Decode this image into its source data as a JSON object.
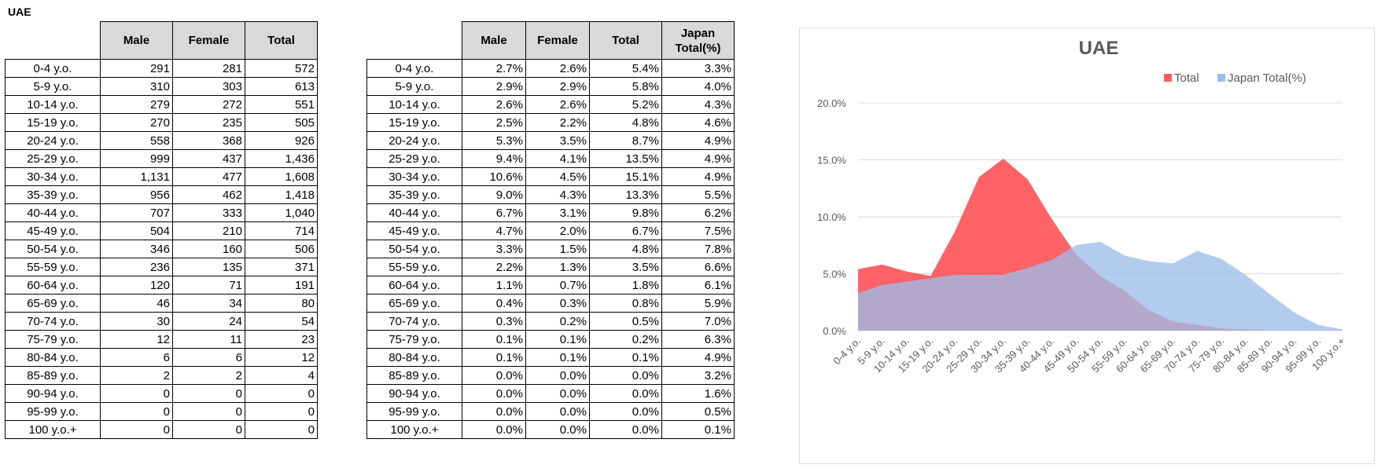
{
  "sheet_title": "UAE",
  "table1": {
    "headers": [
      "Male",
      "Female",
      "Total"
    ],
    "rows": [
      [
        "0-4 y.o.",
        "291",
        "281",
        "572"
      ],
      [
        "5-9 y.o.",
        "310",
        "303",
        "613"
      ],
      [
        "10-14 y.o.",
        "279",
        "272",
        "551"
      ],
      [
        "15-19 y.o.",
        "270",
        "235",
        "505"
      ],
      [
        "20-24 y.o.",
        "558",
        "368",
        "926"
      ],
      [
        "25-29 y.o.",
        "999",
        "437",
        "1,436"
      ],
      [
        "30-34 y.o.",
        "1,131",
        "477",
        "1,608"
      ],
      [
        "35-39 y.o.",
        "956",
        "462",
        "1,418"
      ],
      [
        "40-44 y.o.",
        "707",
        "333",
        "1,040"
      ],
      [
        "45-49 y.o.",
        "504",
        "210",
        "714"
      ],
      [
        "50-54 y.o.",
        "346",
        "160",
        "506"
      ],
      [
        "55-59 y.o.",
        "236",
        "135",
        "371"
      ],
      [
        "60-64 y.o.",
        "120",
        "71",
        "191"
      ],
      [
        "65-69 y.o.",
        "46",
        "34",
        "80"
      ],
      [
        "70-74 y.o.",
        "30",
        "24",
        "54"
      ],
      [
        "75-79 y.o.",
        "12",
        "11",
        "23"
      ],
      [
        "80-84 y.o.",
        "6",
        "6",
        "12"
      ],
      [
        "85-89 y.o.",
        "2",
        "2",
        "4"
      ],
      [
        "90-94 y.o.",
        "0",
        "0",
        "0"
      ],
      [
        "95-99 y.o.",
        "0",
        "0",
        "0"
      ],
      [
        "100 y.o.+",
        "0",
        "0",
        "0"
      ]
    ]
  },
  "table2": {
    "headers": [
      "Male",
      "Female",
      "Total",
      "Japan Total(%)"
    ],
    "rows": [
      [
        "0-4 y.o.",
        "2.7%",
        "2.6%",
        "5.4%",
        "3.3%"
      ],
      [
        "5-9 y.o.",
        "2.9%",
        "2.9%",
        "5.8%",
        "4.0%"
      ],
      [
        "10-14 y.o.",
        "2.6%",
        "2.6%",
        "5.2%",
        "4.3%"
      ],
      [
        "15-19 y.o.",
        "2.5%",
        "2.2%",
        "4.8%",
        "4.6%"
      ],
      [
        "20-24 y.o.",
        "5.3%",
        "3.5%",
        "8.7%",
        "4.9%"
      ],
      [
        "25-29 y.o.",
        "9.4%",
        "4.1%",
        "13.5%",
        "4.9%"
      ],
      [
        "30-34 y.o.",
        "10.6%",
        "4.5%",
        "15.1%",
        "4.9%"
      ],
      [
        "35-39 y.o.",
        "9.0%",
        "4.3%",
        "13.3%",
        "5.5%"
      ],
      [
        "40-44 y.o.",
        "6.7%",
        "3.1%",
        "9.8%",
        "6.2%"
      ],
      [
        "45-49 y.o.",
        "4.7%",
        "2.0%",
        "6.7%",
        "7.5%"
      ],
      [
        "50-54 y.o.",
        "3.3%",
        "1.5%",
        "4.8%",
        "7.8%"
      ],
      [
        "55-59 y.o.",
        "2.2%",
        "1.3%",
        "3.5%",
        "6.6%"
      ],
      [
        "60-64 y.o.",
        "1.1%",
        "0.7%",
        "1.8%",
        "6.1%"
      ],
      [
        "65-69 y.o.",
        "0.4%",
        "0.3%",
        "0.8%",
        "5.9%"
      ],
      [
        "70-74 y.o.",
        "0.3%",
        "0.2%",
        "0.5%",
        "7.0%"
      ],
      [
        "75-79 y.o.",
        "0.1%",
        "0.1%",
        "0.2%",
        "6.3%"
      ],
      [
        "80-84 y.o.",
        "0.1%",
        "0.1%",
        "0.1%",
        "4.9%"
      ],
      [
        "85-89 y.o.",
        "0.0%",
        "0.0%",
        "0.0%",
        "3.2%"
      ],
      [
        "90-94 y.o.",
        "0.0%",
        "0.0%",
        "0.0%",
        "1.6%"
      ],
      [
        "95-99 y.o.",
        "0.0%",
        "0.0%",
        "0.0%",
        "0.5%"
      ],
      [
        "100 y.o.+",
        "0.0%",
        "0.0%",
        "0.0%",
        "0.1%"
      ]
    ]
  },
  "chart_data": {
    "type": "area",
    "title": "UAE",
    "categories": [
      "0-4 y.o.",
      "5-9 y.o.",
      "10-14 y.o.",
      "15-19 y.o.",
      "20-24 y.o.",
      "25-29 y.o.",
      "30-34 y.o.",
      "35-39 y.o.",
      "40-44 y.o.",
      "45-49 y.o.",
      "50-54 y.o.",
      "55-59 y.o.",
      "60-64 y.o.",
      "65-69 y.o.",
      "70-74 y.o.",
      "75-79 y.o.",
      "80-84 y.o.",
      "85-89 y.o.",
      "90-94 y.o.",
      "95-99 y.o.",
      "100 y.o.+"
    ],
    "series": [
      {
        "name": "Total",
        "color": "#ff5a5f",
        "values": [
          5.4,
          5.8,
          5.2,
          4.8,
          8.7,
          13.5,
          15.1,
          13.3,
          9.8,
          6.7,
          4.8,
          3.5,
          1.8,
          0.8,
          0.5,
          0.2,
          0.1,
          0.0,
          0.0,
          0.0,
          0.0
        ]
      },
      {
        "name": "Japan Total(%)",
        "color": "#9dbde8",
        "values": [
          3.3,
          4.0,
          4.3,
          4.6,
          4.9,
          4.9,
          4.9,
          5.5,
          6.2,
          7.5,
          7.8,
          6.6,
          6.1,
          5.9,
          7.0,
          6.3,
          4.9,
          3.2,
          1.6,
          0.5,
          0.1
        ]
      }
    ],
    "yticks": [
      "0.0%",
      "5.0%",
      "10.0%",
      "15.0%",
      "20.0%"
    ],
    "ylim": [
      0,
      20
    ],
    "legend": "top-right",
    "grid": true
  }
}
